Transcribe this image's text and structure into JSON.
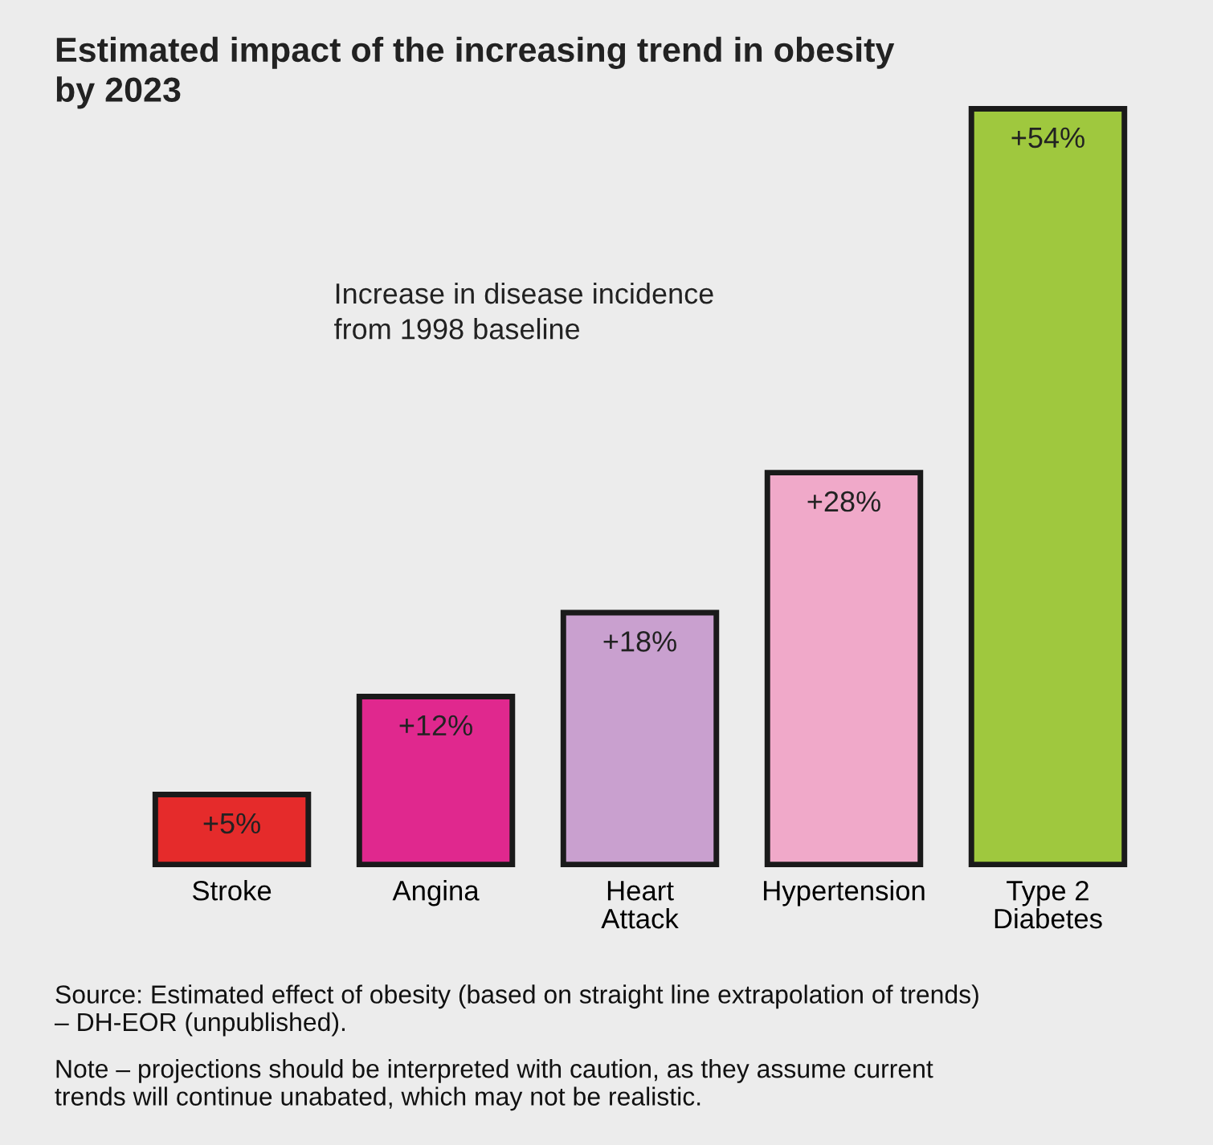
{
  "chart_data": {
    "type": "bar",
    "title": "Estimated impact of the increasing trend in obesity\nby 2023",
    "subtitle": "Increase in disease incidence\nfrom 1998 baseline",
    "categories": [
      "Stroke",
      "Angina",
      "Heart\nAttack",
      "Hypertension",
      "Type 2\nDiabetes"
    ],
    "values": [
      5,
      12,
      18,
      28,
      54
    ],
    "value_labels": [
      "+5%",
      "+12%",
      "+18%",
      "+28%",
      "+54%"
    ],
    "colors": [
      "#e52b2b",
      "#e0288e",
      "#c9a0cf",
      "#f0a9c9",
      "#9fc83e"
    ],
    "annotations": [
      "Source: Estimated effect of obesity (based on straight line extrapolation of trends)\n– DH-EOR (unpublished).",
      "Note – projections should be interpreted with caution, as they assume current\ntrends will continue unabated, which may not be realistic."
    ]
  }
}
